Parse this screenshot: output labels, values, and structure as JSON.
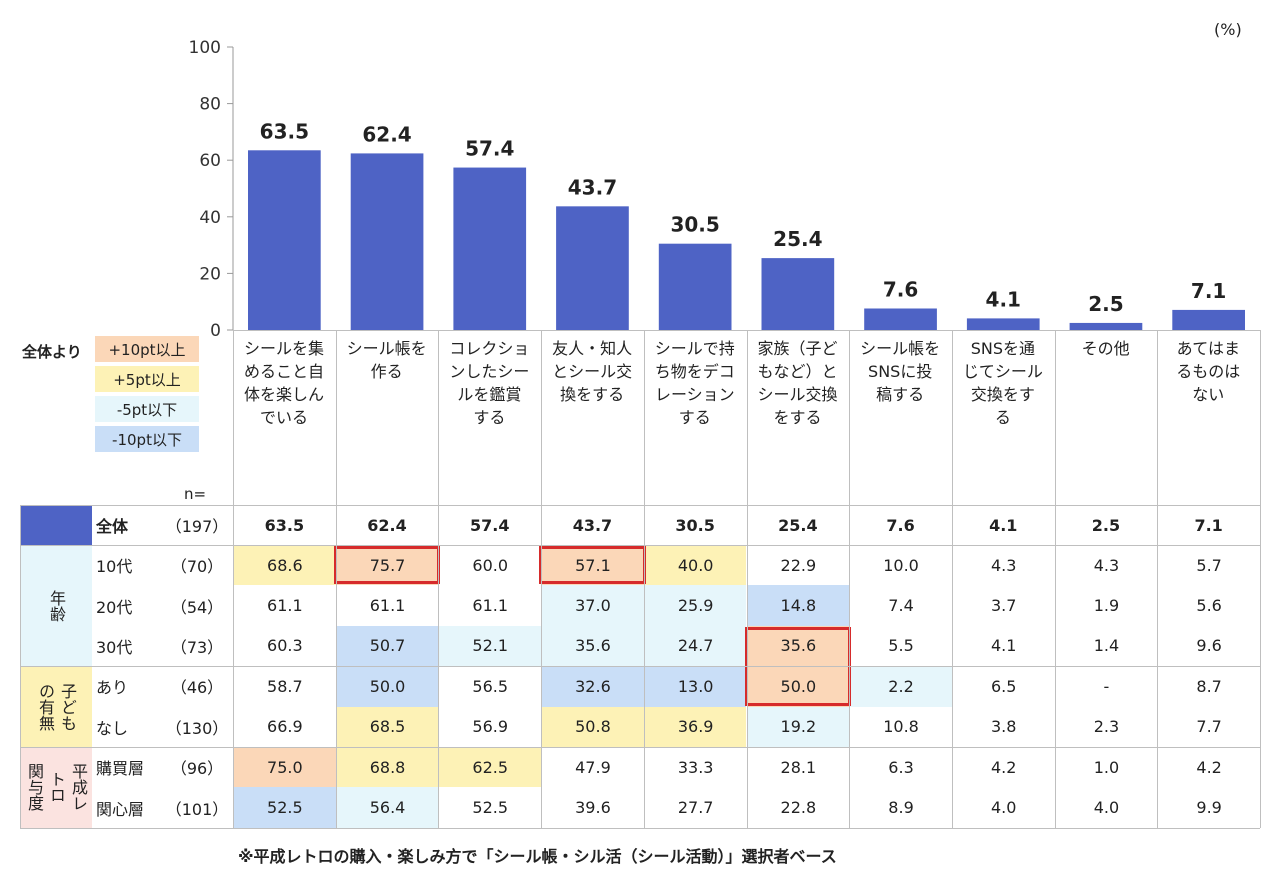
{
  "unit_label": "(%)",
  "legend": {
    "title": "全体より",
    "items": [
      {
        "label": "+10pt以上",
        "color": "#fbd7b8"
      },
      {
        "label": "+5pt以上",
        "color": "#fdf2b6"
      },
      {
        "label": "-5pt以下",
        "color": "#e6f6fb"
      },
      {
        "label": "-10pt以下",
        "color": "#c9def7"
      }
    ]
  },
  "n_label": "n=",
  "footnote": "※平成レトロの購入・楽しみ方で「シール帳・シル活（シール活動）」選択者ベース",
  "chart_data": {
    "type": "bar",
    "categories": [
      "シールを集\nめること自\n体を楽しん\nでいる",
      "シール帳を\n作る",
      "コレクショ\nンしたシー\nルを鑑賞\nする",
      "友人・知人\nとシール交\n換をする",
      "シールで持\nち物をデコ\nレーション\nする",
      "家族（子ど\nもなど）と\nシール交換\nをする",
      "シール帳を\nSNSに投\n稿する",
      "SNSを通\nじてシール\n交換をす\nる",
      "その他",
      "あてはま\nるものは\nない"
    ],
    "values": [
      63.5,
      62.4,
      57.4,
      43.7,
      30.5,
      25.4,
      7.6,
      4.1,
      2.5,
      7.1
    ],
    "value_labels": [
      "63.5",
      "62.4",
      "57.4",
      "43.7",
      "30.5",
      "25.4",
      "7.6",
      "4.1",
      "2.5",
      "7.1"
    ],
    "yticks": [
      "100",
      "80",
      "60",
      "40",
      "20",
      "0"
    ],
    "ylim": [
      0,
      100
    ],
    "bar_color": "#4e63c5",
    "grid": false
  },
  "table": {
    "total_row": {
      "label": "全体",
      "n": "（197）",
      "values": [
        "63.5",
        "62.4",
        "57.4",
        "43.7",
        "30.5",
        "25.4",
        "7.6",
        "4.1",
        "2.5",
        "7.1"
      ]
    },
    "groups": [
      {
        "label": "年齢",
        "label_color": "#e6f6fb",
        "rows": [
          {
            "label": "10代",
            "n": "（70）",
            "values": [
              "68.6",
              "75.7",
              "60.0",
              "57.1",
              "40.0",
              "22.9",
              "10.0",
              "4.3",
              "4.3",
              "5.7"
            ],
            "shades": [
              "p5",
              "p10",
              "",
              "p10",
              "p5",
              "",
              "",
              "",
              "",
              ""
            ],
            "outlined": [
              1,
              3
            ]
          },
          {
            "label": "20代",
            "n": "（54）",
            "values": [
              "61.1",
              "61.1",
              "61.1",
              "37.0",
              "25.9",
              "14.8",
              "7.4",
              "3.7",
              "1.9",
              "5.6"
            ],
            "shades": [
              "",
              "",
              "",
              "m5",
              "m5",
              "m10",
              "",
              "",
              "",
              ""
            ],
            "outlined": []
          },
          {
            "label": "30代",
            "n": "（73）",
            "values": [
              "60.3",
              "50.7",
              "52.1",
              "35.6",
              "24.7",
              "35.6",
              "5.5",
              "4.1",
              "1.4",
              "9.6"
            ],
            "shades": [
              "",
              "m10",
              "m5",
              "m5",
              "m5",
              "p10",
              "",
              "",
              "",
              ""
            ],
            "outlined": []
          }
        ]
      },
      {
        "label": "子ども\nの有無",
        "label_color": "#fdf2b6",
        "rows": [
          {
            "label": "あり",
            "n": "（46）",
            "values": [
              "58.7",
              "50.0",
              "56.5",
              "32.6",
              "13.0",
              "50.0",
              "2.2",
              "6.5",
              "-",
              "8.7"
            ],
            "shades": [
              "",
              "m10",
              "",
              "m10",
              "m10",
              "p10",
              "m5",
              "",
              "",
              ""
            ],
            "outlined": []
          },
          {
            "label": "なし",
            "n": "（130）",
            "values": [
              "66.9",
              "68.5",
              "56.9",
              "50.8",
              "36.9",
              "19.2",
              "10.8",
              "3.8",
              "2.3",
              "7.7"
            ],
            "shades": [
              "",
              "p5",
              "",
              "p5",
              "p5",
              "m5",
              "",
              "",
              "",
              ""
            ],
            "outlined": []
          }
        ]
      },
      {
        "label": "平成レ\nトロ\n関与度",
        "label_color": "#fbe3e0",
        "rows": [
          {
            "label": "購買層",
            "n": "（96）",
            "values": [
              "75.0",
              "68.8",
              "62.5",
              "47.9",
              "33.3",
              "28.1",
              "6.3",
              "4.2",
              "1.0",
              "4.2"
            ],
            "shades": [
              "p10",
              "p5",
              "p5",
              "",
              "",
              "",
              "",
              "",
              "",
              ""
            ],
            "outlined": []
          },
          {
            "label": "関心層",
            "n": "（101）",
            "values": [
              "52.5",
              "56.4",
              "52.5",
              "39.6",
              "27.7",
              "22.8",
              "8.9",
              "4.0",
              "4.0",
              "9.9"
            ],
            "shades": [
              "m10",
              "m5",
              "",
              "",
              "",
              "",
              "",
              "",
              "",
              ""
            ],
            "outlined": []
          }
        ]
      }
    ],
    "outline_blocks": [
      {
        "col": 5,
        "rows": [
          2,
          3
        ]
      }
    ]
  }
}
